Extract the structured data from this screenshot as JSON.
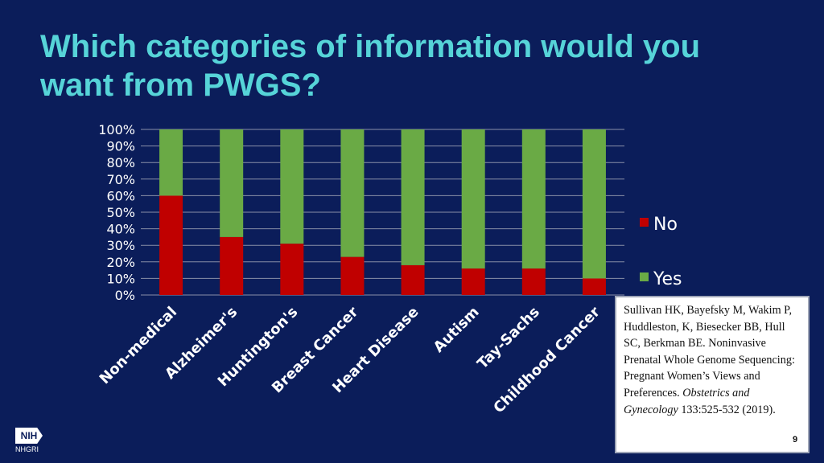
{
  "slide": {
    "title": "Which categories of information would you want from PWGS?",
    "page_number": "9",
    "logo": {
      "badge_text": "NIH",
      "org_text": "NHGRI"
    },
    "citation": {
      "text": "Sullivan HK, Bayefsky M, Wakim P, Huddleston, K, Biesecker BB, Hull SC, Berkman BE.  Noninvasive Prenatal Whole Genome Sequencing: Pregnant Women’s Views and Preferences.",
      "journal": "Obstetrics and Gynecology",
      "volume": "133:525-532 (2019)."
    }
  },
  "chart_data": {
    "type": "bar",
    "stacked": true,
    "percent": true,
    "categories": [
      "Non-medical",
      "Alzheimer's",
      "Huntington's",
      "Breast Cancer",
      "Heart Disease",
      "Autism",
      "Tay-Sachs",
      "Childhood Cancer"
    ],
    "series": [
      {
        "name": "No",
        "color": "#c00000",
        "values": [
          60,
          35,
          31,
          23,
          18,
          16,
          16,
          10
        ]
      },
      {
        "name": "Yes",
        "color": "#6aaa45",
        "values": [
          40,
          65,
          69,
          77,
          82,
          84,
          84,
          90
        ]
      }
    ],
    "ylim": [
      0,
      100
    ],
    "yticks": [
      "0%",
      "10%",
      "20%",
      "30%",
      "40%",
      "50%",
      "60%",
      "70%",
      "80%",
      "90%",
      "100%"
    ],
    "grid": true,
    "legend": "right",
    "colors": {
      "axis_text": "#ffffff",
      "category_text": "#ffffff",
      "grid": "#8a90a8"
    }
  }
}
